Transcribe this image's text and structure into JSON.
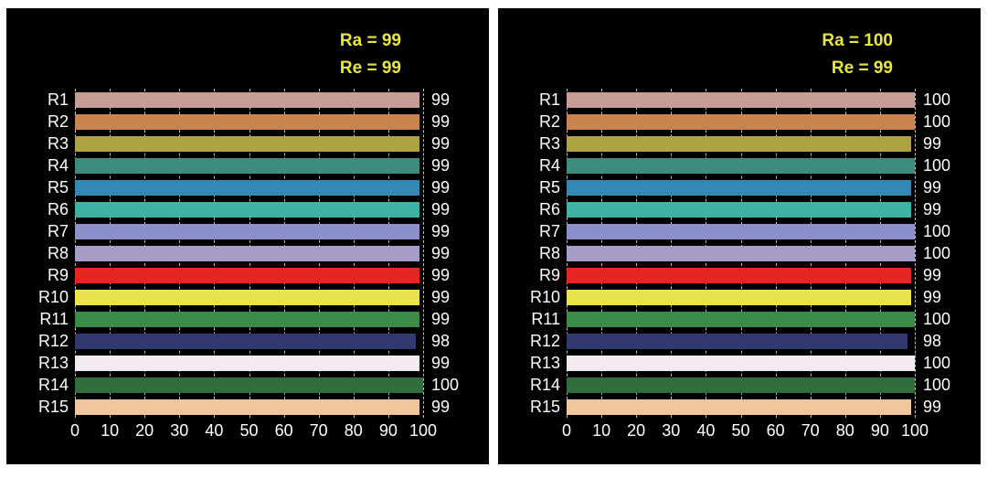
{
  "colors": {
    "page_bg": "#ffffff",
    "panel_bg": "#000000",
    "accent_yellow": "#e9e73c",
    "text": "#ffffff",
    "gridline": "rgba(255,255,255,0.75)"
  },
  "bar_colors": [
    "#c89d96",
    "#c98350",
    "#ada342",
    "#3f8b7d",
    "#3389b4",
    "#3eb2a3",
    "#8c8fc9",
    "#a89cc9",
    "#e52622",
    "#e9e44c",
    "#3c8c49",
    "#31396f",
    "#f3eaf2",
    "#306f3d",
    "#f0c69d"
  ],
  "chart_data": [
    {
      "type": "bar",
      "orientation": "horizontal",
      "title": "Ra = 99",
      "subtitle": "Re = 99",
      "ra_text": "Ra = 99",
      "re_text": "Re = 99",
      "categories": [
        "R1",
        "R2",
        "R3",
        "R4",
        "R5",
        "R6",
        "R7",
        "R8",
        "R9",
        "R10",
        "R11",
        "R12",
        "R13",
        "R14",
        "R15"
      ],
      "values": [
        99,
        99,
        99,
        99,
        99,
        99,
        99,
        99,
        99,
        99,
        99,
        98,
        99,
        100,
        99
      ],
      "xlim": [
        0,
        100
      ],
      "xticks": [
        0,
        10,
        20,
        30,
        40,
        50,
        60,
        70,
        80,
        90,
        100
      ],
      "grid": true,
      "value_labels_shown": true,
      "legend": "none"
    },
    {
      "type": "bar",
      "orientation": "horizontal",
      "title": "Ra = 100",
      "subtitle": "Re = 99",
      "ra_text": "Ra = 100",
      "re_text": "Re = 99",
      "categories": [
        "R1",
        "R2",
        "R3",
        "R4",
        "R5",
        "R6",
        "R7",
        "R8",
        "R9",
        "R10",
        "R11",
        "R12",
        "R13",
        "R14",
        "R15"
      ],
      "values": [
        100,
        100,
        99,
        100,
        99,
        99,
        100,
        100,
        99,
        99,
        100,
        98,
        100,
        100,
        99
      ],
      "xlim": [
        0,
        100
      ],
      "xticks": [
        0,
        10,
        20,
        30,
        40,
        50,
        60,
        70,
        80,
        90,
        100
      ],
      "grid": true,
      "value_labels_shown": true,
      "legend": "none"
    }
  ]
}
